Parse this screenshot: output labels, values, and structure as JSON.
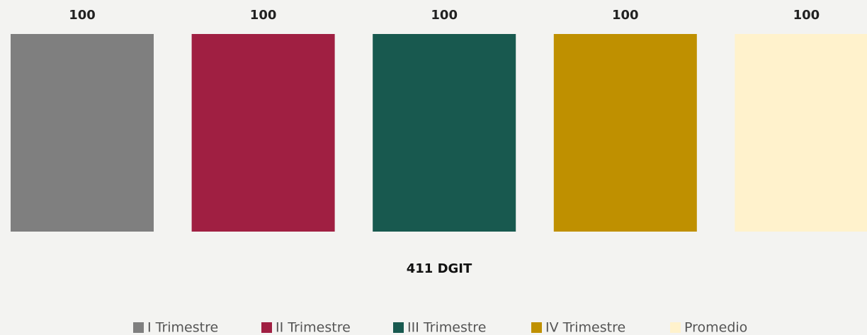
{
  "chart_data": {
    "type": "bar",
    "categories": [
      "411 DGIT"
    ],
    "series": [
      {
        "name": "I Trimestre",
        "color": "#7f7f7f",
        "values": [
          100
        ]
      },
      {
        "name": "II Trimestre",
        "color": "#a01f42",
        "values": [
          100
        ]
      },
      {
        "name": "III Trimestre",
        "color": "#18594f",
        "values": [
          100
        ]
      },
      {
        "name": "IV Trimestre",
        "color": "#bf9000",
        "values": [
          100
        ]
      },
      {
        "name": "Promedio",
        "color": "#fff2cc",
        "values": [
          100
        ]
      }
    ],
    "ylim": [
      0,
      100
    ],
    "legend": "bottom"
  }
}
